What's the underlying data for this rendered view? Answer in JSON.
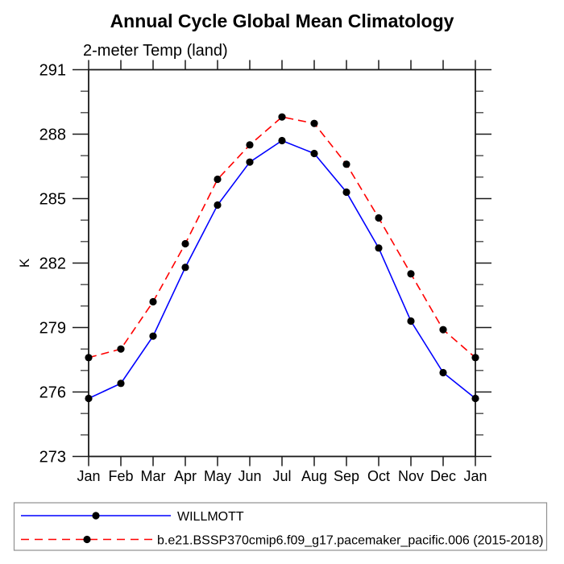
{
  "title": "Annual Cycle Global Mean Climatology",
  "subtitle": "2-meter Temp (land)",
  "y_axis": {
    "label": "K",
    "min": 273,
    "max": 291,
    "major_step": 3,
    "minor_step": 1,
    "tick_labels": [
      "273",
      "276",
      "279",
      "282",
      "285",
      "288",
      "291"
    ]
  },
  "x_axis": {
    "tick_labels": [
      "Jan",
      "Feb",
      "Mar",
      "Apr",
      "May",
      "Jun",
      "Jul",
      "Aug",
      "Sep",
      "Oct",
      "Nov",
      "Dec",
      "Jan"
    ]
  },
  "legend": {
    "items": [
      {
        "label": "WILLMOTT",
        "color": "#0000ff",
        "line_style": "solid",
        "marker": "black-filled-circle"
      },
      {
        "label": "b.e21.BSSP370cmip6.f09_g17.pacemaker_pacific.006 (2015-2018)",
        "color": "#ff0000",
        "line_style": "dashed",
        "marker": "black-filled-circle"
      }
    ]
  },
  "colors": {
    "axis": "#1a1a1a",
    "marker": "#000000",
    "series_willmott": "#0000ff",
    "series_model": "#ff0000",
    "legend_border": "#909090"
  },
  "chart_data": {
    "type": "line",
    "title": "Annual Cycle Global Mean Climatology",
    "subtitle": "2-meter Temp (land)",
    "xlabel": "",
    "ylabel": "K",
    "ylim": [
      273,
      291
    ],
    "ytick_interval": 3,
    "yminor_interval": 1,
    "grid": false,
    "legend_position": "bottom-left-box",
    "categories": [
      "Jan",
      "Feb",
      "Mar",
      "Apr",
      "May",
      "Jun",
      "Jul",
      "Aug",
      "Sep",
      "Oct",
      "Nov",
      "Dec",
      "Jan"
    ],
    "series": [
      {
        "name": "WILLMOTT",
        "color": "#0000ff",
        "line_style": "solid",
        "marker": "filled-circle",
        "marker_color": "#000000",
        "values": [
          275.7,
          276.4,
          278.6,
          281.8,
          284.7,
          286.7,
          287.7,
          287.1,
          285.3,
          282.7,
          279.3,
          276.9,
          275.7
        ]
      },
      {
        "name": "b.e21.BSSP370cmip6.f09_g17.pacemaker_pacific.006 (2015-2018)",
        "color": "#ff0000",
        "line_style": "dashed",
        "marker": "filled-circle",
        "marker_color": "#000000",
        "values": [
          277.6,
          278.0,
          280.2,
          282.9,
          285.9,
          287.5,
          288.8,
          288.5,
          286.6,
          284.1,
          281.5,
          278.9,
          277.6
        ]
      }
    ]
  }
}
